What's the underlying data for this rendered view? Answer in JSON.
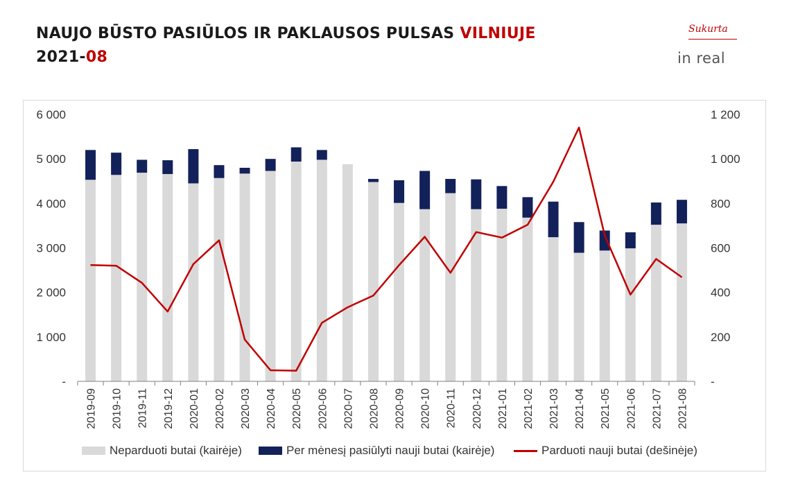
{
  "title": {
    "line1_main": "NAUJO BŪSTO PASIŪLOS IR PAKLAUSOS PULSAS ",
    "line1_red": "VILNIUJE",
    "line2_main": "2021-",
    "line2_red": "08"
  },
  "logo": {
    "made_by": "Sukurta",
    "brand": "in real"
  },
  "chart_data": {
    "type": "bar",
    "categories": [
      "2019-09",
      "2019-10",
      "2019-11",
      "2019-12",
      "2020-01",
      "2020-02",
      "2020-03",
      "2020-04",
      "2020-05",
      "2020-06",
      "2020-07",
      "2020-08",
      "2020-09",
      "2020-10",
      "2020-11",
      "2020-12",
      "2021-01",
      "2021-02",
      "2021-03",
      "2021-04",
      "2021-05",
      "2021-06",
      "2021-07",
      "2021-08"
    ],
    "series": [
      {
        "name": "Neparduoti butai (kairėje)",
        "kind": "stacked-bar",
        "axis": "left",
        "values": [
          4530,
          4640,
          4690,
          4660,
          4450,
          4570,
          4670,
          4730,
          4940,
          4980,
          4880,
          4480,
          4010,
          3870,
          4230,
          3870,
          3880,
          3680,
          3240,
          2890,
          2940,
          2990,
          3520,
          3550
        ]
      },
      {
        "name": "Per mėnesį pasiūlyti nauji butai (kairėje)",
        "kind": "stacked-bar",
        "axis": "left",
        "values": [
          670,
          500,
          290,
          310,
          770,
          290,
          130,
          270,
          320,
          220,
          0,
          70,
          510,
          860,
          320,
          670,
          510,
          460,
          800,
          690,
          450,
          360,
          500,
          530
        ]
      },
      {
        "name": "Parduoti nauji butai (dešinėje)",
        "kind": "line",
        "axis": "right",
        "values": [
          523,
          520,
          443,
          314,
          527,
          634,
          188,
          50,
          48,
          263,
          333,
          386,
          522,
          650,
          488,
          671,
          646,
          704,
          897,
          1141,
          656,
          390,
          550,
          468
        ]
      }
    ],
    "left_axis": {
      "range": [
        0,
        6000
      ],
      "ticks": [
        "-",
        "1 000",
        "2 000",
        "3 000",
        "4 000",
        "5 000",
        "6 000"
      ]
    },
    "right_axis": {
      "range": [
        0,
        1200
      ],
      "ticks": [
        "-",
        "200",
        "400",
        "600",
        "800",
        "1 000",
        "1 200"
      ]
    },
    "grid": false,
    "legend_position": "bottom",
    "colors": {
      "unsold": "#d9d9d9",
      "offered": "#13215a",
      "sold": "#c00000"
    }
  }
}
